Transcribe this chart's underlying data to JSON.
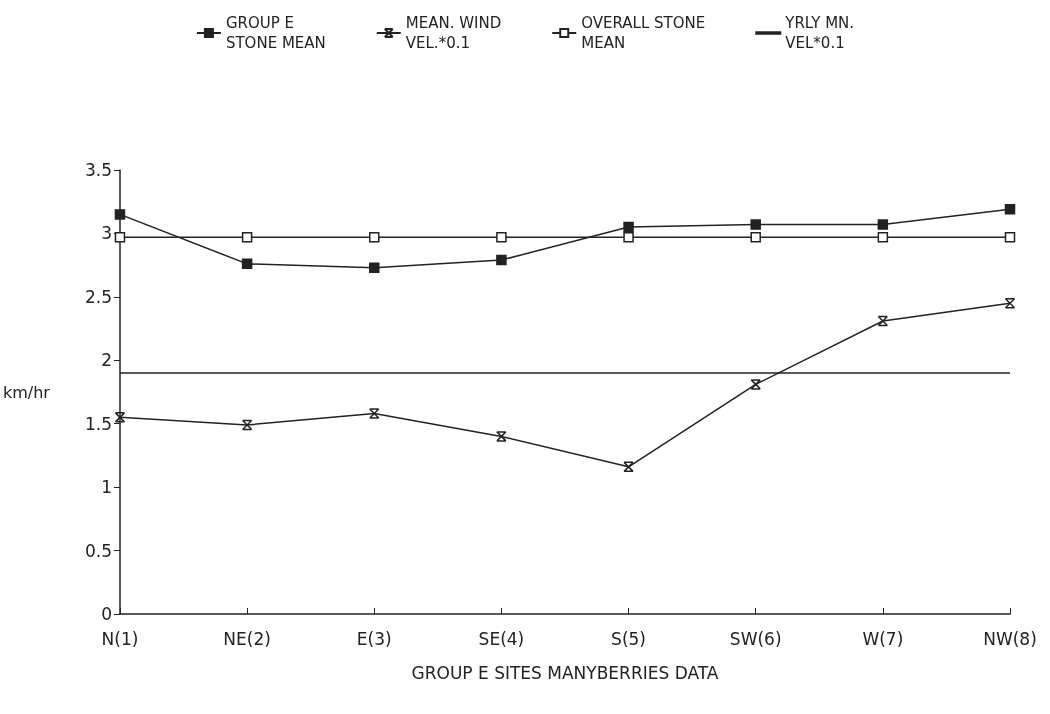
{
  "chart_data": {
    "type": "line",
    "xlabel": "GROUP E SITES MANYBERRIES DATA",
    "ylabel": "km/hr",
    "categories": [
      "N(1)",
      "NE(2)",
      "E(3)",
      "SE(4)",
      "S(5)",
      "SW(6)",
      "W(7)",
      "NW(8)"
    ],
    "series": [
      {
        "name": "GROUP E STONE MEAN",
        "color": "#222222",
        "marker": "square",
        "values": [
          3.15,
          2.76,
          2.73,
          2.79,
          3.05,
          3.07,
          3.07,
          3.19
        ]
      },
      {
        "name": "MEAN. WIND VEL.*0.1",
        "color": "#222222",
        "marker": "cross",
        "values": [
          1.55,
          1.49,
          1.58,
          1.4,
          1.16,
          1.81,
          2.31,
          2.45
        ]
      },
      {
        "name": "OVERALL STONE MEAN",
        "color": "#222222",
        "marker": "square",
        "values": [
          2.97,
          2.97,
          2.97,
          2.97,
          2.97,
          2.97,
          2.97,
          2.97
        ]
      },
      {
        "name": "YRLY MN. VEL*0.1",
        "color": "#222222",
        "marker": "none",
        "values": [
          1.9,
          1.9,
          1.9,
          1.9,
          1.9,
          1.9,
          1.9,
          1.9
        ]
      }
    ],
    "ylim": [
      0,
      3.5
    ],
    "yticks": [
      0,
      0.5,
      1,
      1.5,
      2,
      2.5,
      3,
      3.5
    ],
    "grid": false,
    "legend": "top"
  }
}
